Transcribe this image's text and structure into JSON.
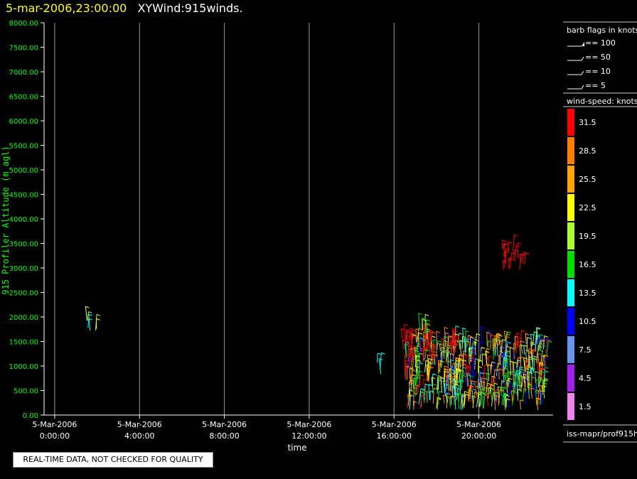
{
  "header": {
    "date": "5-mar-2006,23:00:00",
    "name": "XYWind:915winds."
  },
  "banner": "REAL-TIME DATA, NOT CHECKED FOR QUALITY",
  "footer_id": "iss-mapr/prof915h",
  "barb_legend": {
    "title": "barb flags in knots",
    "items": [
      "== 100",
      "== 50",
      "== 10",
      "== 5"
    ]
  },
  "colorbar": {
    "title": "wind-speed: knots",
    "items": [
      {
        "label": "31.5",
        "color": "#ff0000"
      },
      {
        "label": "28.5",
        "color": "#ff8000"
      },
      {
        "label": "25.5",
        "color": "#ffa500"
      },
      {
        "label": "22.5",
        "color": "#ffff00"
      },
      {
        "label": "19.5",
        "color": "#aaff33"
      },
      {
        "label": "16.5",
        "color": "#00e000"
      },
      {
        "label": "13.5",
        "color": "#00ffff"
      },
      {
        "label": "10.5",
        "color": "#0000ff"
      },
      {
        "label": "7.5",
        "color": "#6495ed"
      },
      {
        "label": "4.5",
        "color": "#a020f0"
      },
      {
        "label": "1.5",
        "color": "#ee82ee"
      }
    ]
  },
  "chart_data": {
    "type": "scatter",
    "title": "",
    "xlabel": "time",
    "ylabel": "915 Profiler Altitude (m agl)",
    "xlim_hours": [
      -0.5,
      23.5
    ],
    "ylim": [
      0,
      8000
    ],
    "y_ticks": [
      "0.00",
      "500.00",
      "1000.00",
      "1500.00",
      "2000.00",
      "2500.00",
      "3000.00",
      "3500.00",
      "4000.00",
      "4500.00",
      "5000.00",
      "5500.00",
      "6000.00",
      "6500.00",
      "7000.00",
      "7500.00",
      "8000.00"
    ],
    "x_ticks": [
      {
        "date": "5-Mar-2006",
        "time": "0:00:00",
        "hour": 0
      },
      {
        "date": "5-Mar-2006",
        "time": "4:00:00",
        "hour": 4
      },
      {
        "date": "5-Mar-2006",
        "time": "8:00:00",
        "hour": 8
      },
      {
        "date": "5-Mar-2006",
        "time": "12:00:00",
        "hour": 12
      },
      {
        "date": "5-Mar-2006",
        "time": "16:00:00",
        "hour": 16
      },
      {
        "date": "5-Mar-2006",
        "time": "20:00:00",
        "hour": 20
      }
    ],
    "grid": "vertical",
    "clusters": [
      {
        "t0": 1.5,
        "t1": 2.0,
        "z0": 1650,
        "z1": 2000,
        "colors": [
          "#00ffff",
          "#ffff00",
          "#aaff33"
        ],
        "density": 6
      },
      {
        "t0": 15.2,
        "t1": 15.4,
        "z0": 700,
        "z1": 1100,
        "colors": [
          "#00ffff"
        ],
        "density": 3
      },
      {
        "t0": 16.5,
        "t1": 23.2,
        "z0": 100,
        "z1": 1500,
        "colors": [
          "#ffff00",
          "#ffa500",
          "#00e000",
          "#aaff33",
          "#00ffff",
          "#ff8000",
          "#0000ff",
          "#ff0000"
        ],
        "density": 520
      },
      {
        "t0": 16.4,
        "t1": 16.9,
        "z0": 1050,
        "z1": 1600,
        "colors": [
          "#ff0000"
        ],
        "density": 16
      },
      {
        "t0": 17.4,
        "t1": 17.9,
        "z0": 1100,
        "z1": 1600,
        "colors": [
          "#ff0000"
        ],
        "density": 16
      },
      {
        "t0": 18.5,
        "t1": 18.9,
        "z0": 1200,
        "z1": 1500,
        "colors": [
          "#ff0000"
        ],
        "density": 10
      },
      {
        "t0": 17.2,
        "t1": 17.8,
        "z0": 1500,
        "z1": 1800,
        "colors": [
          "#00e000",
          "#aaff33"
        ],
        "density": 8
      },
      {
        "t0": 21.0,
        "t1": 22.2,
        "z0": 2950,
        "z1": 3400,
        "colors": [
          "#ff0000"
        ],
        "density": 18
      }
    ]
  }
}
